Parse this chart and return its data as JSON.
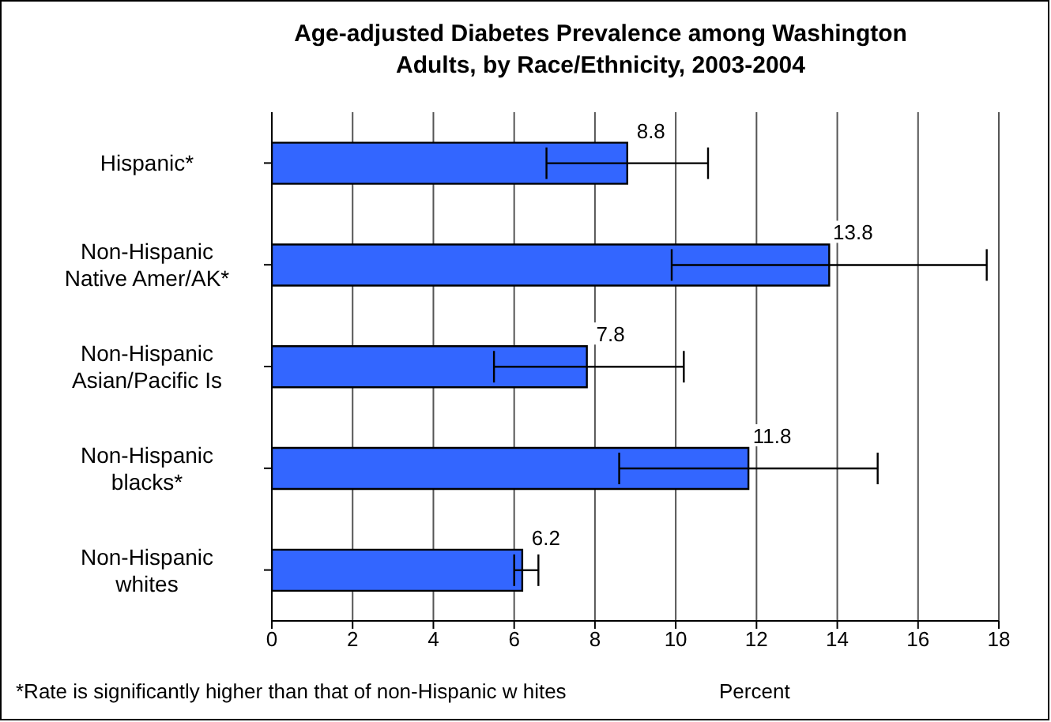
{
  "chart_data": {
    "type": "bar",
    "orientation": "horizontal",
    "title": "Age-adjusted Diabetes Prevalence among Washington Adults, by Race/Ethnicity, 2003-2004",
    "categories": [
      "Hispanic*",
      "Non-Hispanic Native Amer/AK*",
      "Non-Hispanic Asian/Pacific Is",
      "Non-Hispanic blacks*",
      "Non-Hispanic whites"
    ],
    "values": [
      8.8,
      13.8,
      7.8,
      11.8,
      6.2
    ],
    "errors": [
      [
        6.8,
        10.8
      ],
      [
        9.9,
        17.7
      ],
      [
        5.5,
        10.2
      ],
      [
        8.6,
        15.0
      ],
      [
        6.0,
        6.6
      ]
    ],
    "color": "#3366ff",
    "xlim": [
      0,
      18
    ],
    "xticks": [
      0,
      2,
      4,
      6,
      8,
      10,
      12,
      14,
      16,
      18
    ],
    "xlabel": "Percent",
    "annotations": [
      "*Rate is significantly higher than that of non-Hispanic w hites"
    ],
    "data_labels": true,
    "grid": "x"
  }
}
